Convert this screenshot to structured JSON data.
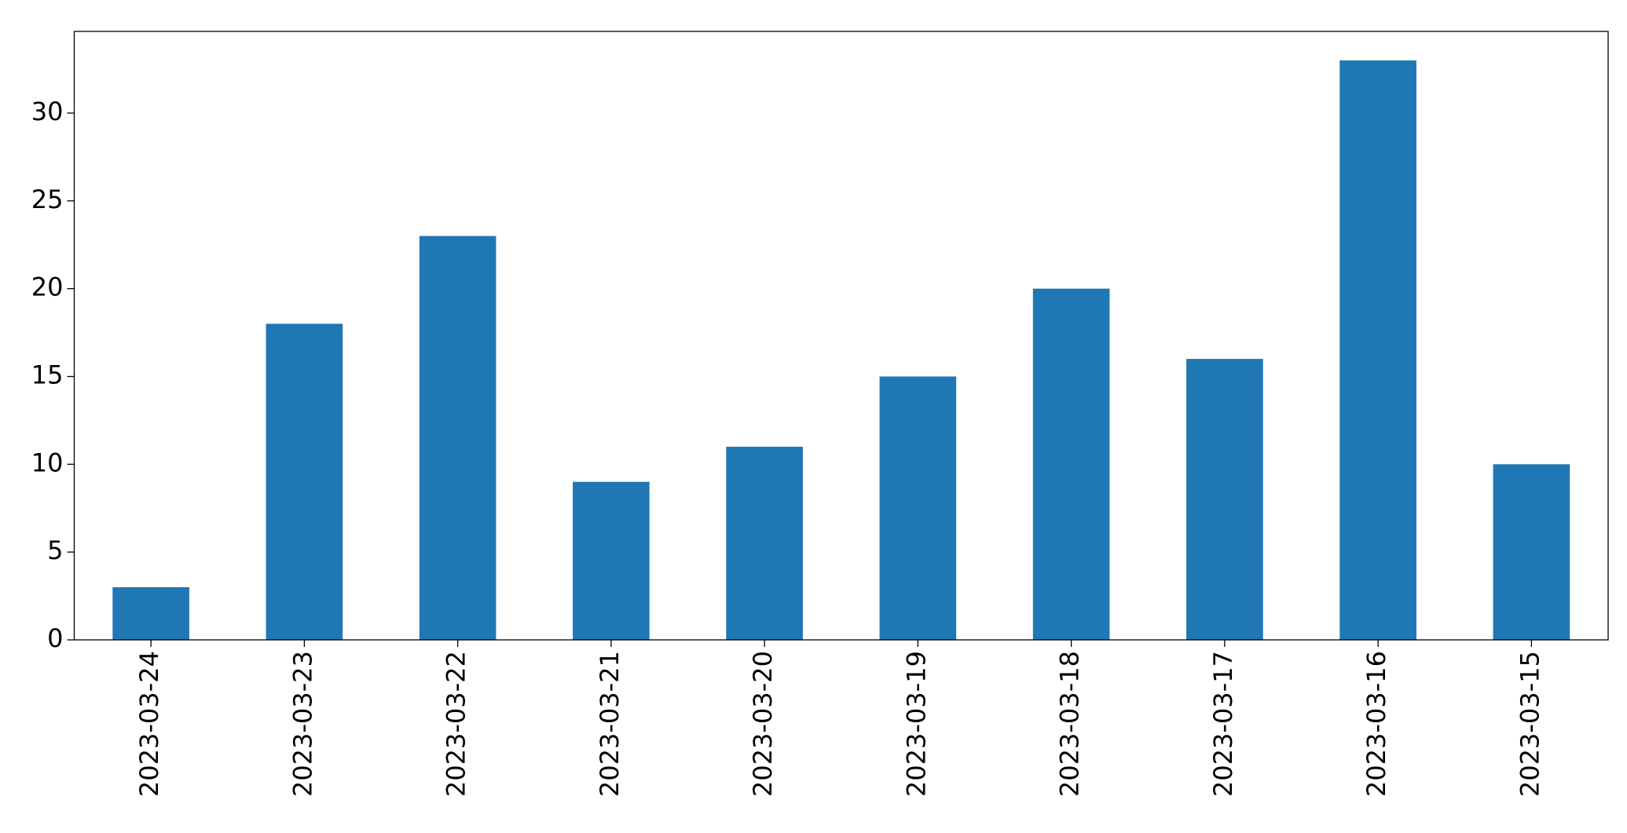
{
  "chart_data": {
    "type": "bar",
    "categories": [
      "2023-03-24",
      "2023-03-23",
      "2023-03-22",
      "2023-03-21",
      "2023-03-20",
      "2023-03-19",
      "2023-03-18",
      "2023-03-17",
      "2023-03-16",
      "2023-03-15"
    ],
    "values": [
      3,
      18,
      23,
      9,
      11,
      15,
      20,
      16,
      33,
      10
    ],
    "color": "#1f77b4",
    "ylim": [
      0,
      34.65
    ],
    "yticks": [
      0,
      5,
      10,
      15,
      20,
      25,
      30
    ],
    "grid": false
  }
}
